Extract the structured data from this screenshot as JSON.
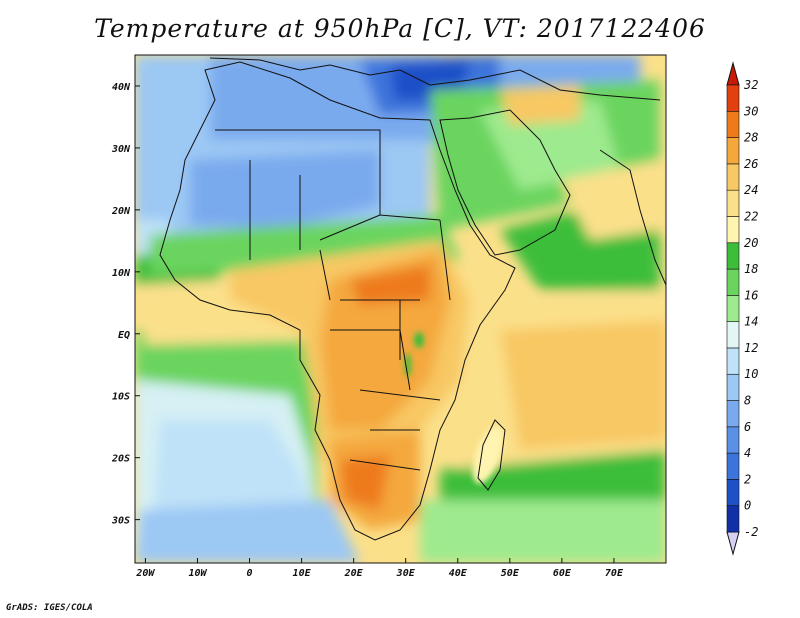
{
  "title": "Temperature at 950hPa [C], VT: 2017122406",
  "credit": "GrADS: IGES/COLA",
  "map": {
    "lon_range": [
      -22,
      80
    ],
    "lat_range": [
      -37,
      45
    ],
    "lon_ticks": [
      {
        "lon": -20,
        "label": "20W"
      },
      {
        "lon": -10,
        "label": "10W"
      },
      {
        "lon": 0,
        "label": "0"
      },
      {
        "lon": 10,
        "label": "10E"
      },
      {
        "lon": 20,
        "label": "20E"
      },
      {
        "lon": 30,
        "label": "30E"
      },
      {
        "lon": 40,
        "label": "40E"
      },
      {
        "lon": 50,
        "label": "50E"
      },
      {
        "lon": 60,
        "label": "60E"
      },
      {
        "lon": 70,
        "label": "70E"
      }
    ],
    "lat_ticks": [
      {
        "lat": 40,
        "label": "40N"
      },
      {
        "lat": 30,
        "label": "30N"
      },
      {
        "lat": 20,
        "label": "20N"
      },
      {
        "lat": 10,
        "label": "10N"
      },
      {
        "lat": 0,
        "label": "EQ"
      },
      {
        "lat": -10,
        "label": "10S"
      },
      {
        "lat": -20,
        "label": "20S"
      },
      {
        "lat": -30,
        "label": "30S"
      }
    ]
  },
  "colorbar": {
    "levels": [
      "-2",
      "0",
      "2",
      "4",
      "6",
      "8",
      "10",
      "12",
      "14",
      "16",
      "18",
      "20",
      "22",
      "24",
      "26",
      "28",
      "30",
      "32"
    ],
    "colors": [
      "#0a1a6e",
      "#1030a8",
      "#1e50c8",
      "#3c74dc",
      "#5a90e6",
      "#7aaaee",
      "#9cc8f4",
      "#bfe2f8",
      "#e2f6f6",
      "#9eea8e",
      "#6ad45e",
      "#3cbe3a",
      "#fff4b0",
      "#fbe08a",
      "#f8c864",
      "#f4a83c",
      "#ee7a1a",
      "#e24010",
      "#c81a08"
    ]
  },
  "colors": {
    "ocean_cool": "#a8d0f2",
    "ocean_mild": "#d6f0f4",
    "ocean_green": "#6ad45e",
    "ocean_warm": "#fff1b0",
    "ocean_hot": "#fbe08a",
    "boundary": "#111111"
  }
}
